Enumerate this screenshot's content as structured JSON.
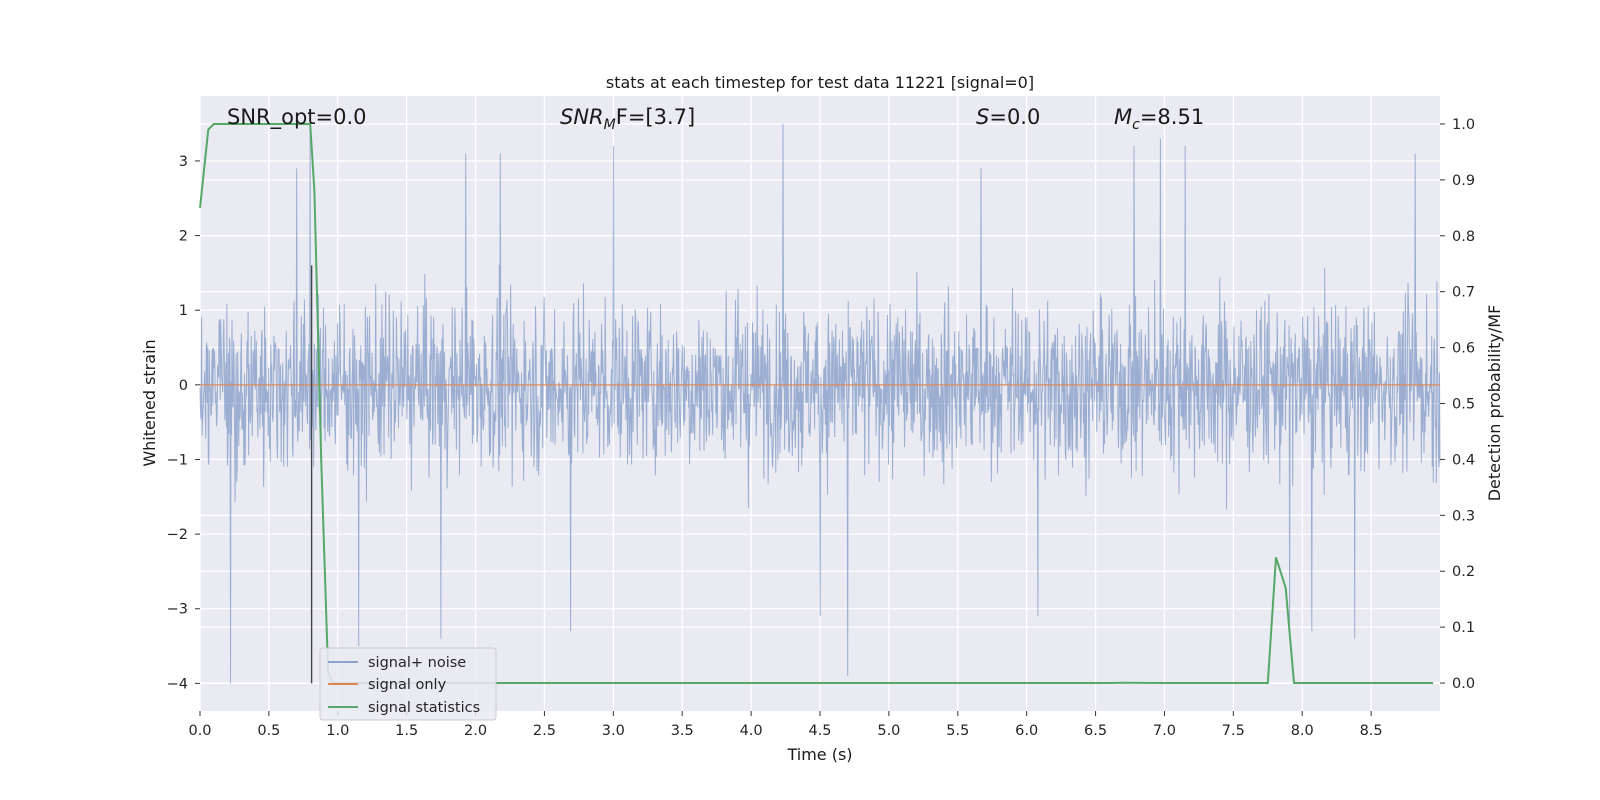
{
  "chart_data": {
    "type": "line",
    "title": "stats at each timestep for test data 11221 [signal=0]",
    "xlabel": "Time (s)",
    "ylabel": "Whitened strain",
    "ylabel_right": "Detection probability/MF",
    "xlim": [
      0,
      9.0
    ],
    "ylim": [
      -4.37,
      3.87
    ],
    "ylim_right": [
      -0.05,
      1.05
    ],
    "grid": true,
    "legend_position": "lower-left",
    "x_ticks": [
      "0.0",
      "0.5",
      "1.0",
      "1.5",
      "2.0",
      "2.5",
      "3.0",
      "3.5",
      "4.0",
      "4.5",
      "5.0",
      "5.5",
      "6.0",
      "6.5",
      "7.0",
      "7.5",
      "8.0",
      "8.5"
    ],
    "x_tick_values": [
      0,
      0.5,
      1,
      1.5,
      2,
      2.5,
      3,
      3.5,
      4,
      4.5,
      5,
      5.5,
      6,
      6.5,
      7,
      7.5,
      8,
      8.5
    ],
    "y_ticks": [
      "−4",
      "−3",
      "−2",
      "−1",
      "0",
      "1",
      "2",
      "3"
    ],
    "y_tick_values": [
      -4,
      -3,
      -2,
      -1,
      0,
      1,
      2,
      3
    ],
    "y2_ticks": [
      "0.0",
      "0.1",
      "0.2",
      "0.3",
      "0.4",
      "0.5",
      "0.6",
      "0.7",
      "0.8",
      "0.9",
      "1.0"
    ],
    "y2_tick_values": [
      0,
      0.1,
      0.2,
      0.3,
      0.4,
      0.5,
      0.6,
      0.7,
      0.8,
      0.9,
      1.0
    ],
    "annotations": {
      "snr_opt": "SNR_opt=0.0",
      "snr_mf_main": "SNR",
      "snr_mf_sub": "M",
      "snr_mf_rest": "F=[3.7]",
      "s_main": "S",
      "s_rest": "=0.0",
      "mc_main": "M",
      "mc_sub": "c",
      "mc_rest": "=8.51"
    },
    "series": [
      {
        "name": "signal+ noise",
        "color": "#4c72b0",
        "axis": "left",
        "description_values": "whitened noise, spread approx -1.8 to 1.9, peaks to about 3.5 and -4.0",
        "spike_x": [
          0.22,
          0.7,
          0.8,
          1.15,
          1.75,
          1.93,
          2.18,
          2.69,
          3.0,
          4.23,
          4.5,
          4.7,
          5.67,
          6.08,
          6.78,
          6.97,
          7.15,
          7.91,
          8.07,
          8.38,
          8.82
        ],
        "spike_y": [
          -4.0,
          2.9,
          3.5,
          -3.5,
          -3.4,
          3.1,
          3.1,
          -3.3,
          3.2,
          3.5,
          -3.1,
          -3.9,
          2.9,
          -3.1,
          3.2,
          3.3,
          3.2,
          -3.2,
          -3.3,
          -3.4,
          3.1
        ]
      },
      {
        "name": "signal only",
        "color": "#dd8452",
        "axis": "left",
        "x": [
          0,
          9.0
        ],
        "y": [
          0,
          0
        ]
      },
      {
        "name": "signal statistics",
        "color": "#55a868",
        "axis": "right",
        "x": [
          0.0,
          0.06,
          0.1,
          0.2,
          0.4,
          0.8,
          0.83,
          0.88,
          0.93,
          0.96,
          1.0,
          6.6,
          6.7,
          7.0,
          7.7,
          7.75,
          7.81,
          7.88,
          7.94,
          8.5,
          8.95
        ],
        "y": [
          0.85,
          0.99,
          1.0,
          1.0,
          1.0,
          1.0,
          0.88,
          0.4,
          0.02,
          0.0,
          0.0,
          0.0,
          0.0005,
          0.0,
          0.0,
          0.0,
          0.225,
          0.17,
          0.0,
          0.0,
          0.0
        ]
      }
    ],
    "marker_line": {
      "x": 0.81,
      "y_from": -4.0,
      "y_to": 1.6,
      "color": "#444444"
    }
  }
}
